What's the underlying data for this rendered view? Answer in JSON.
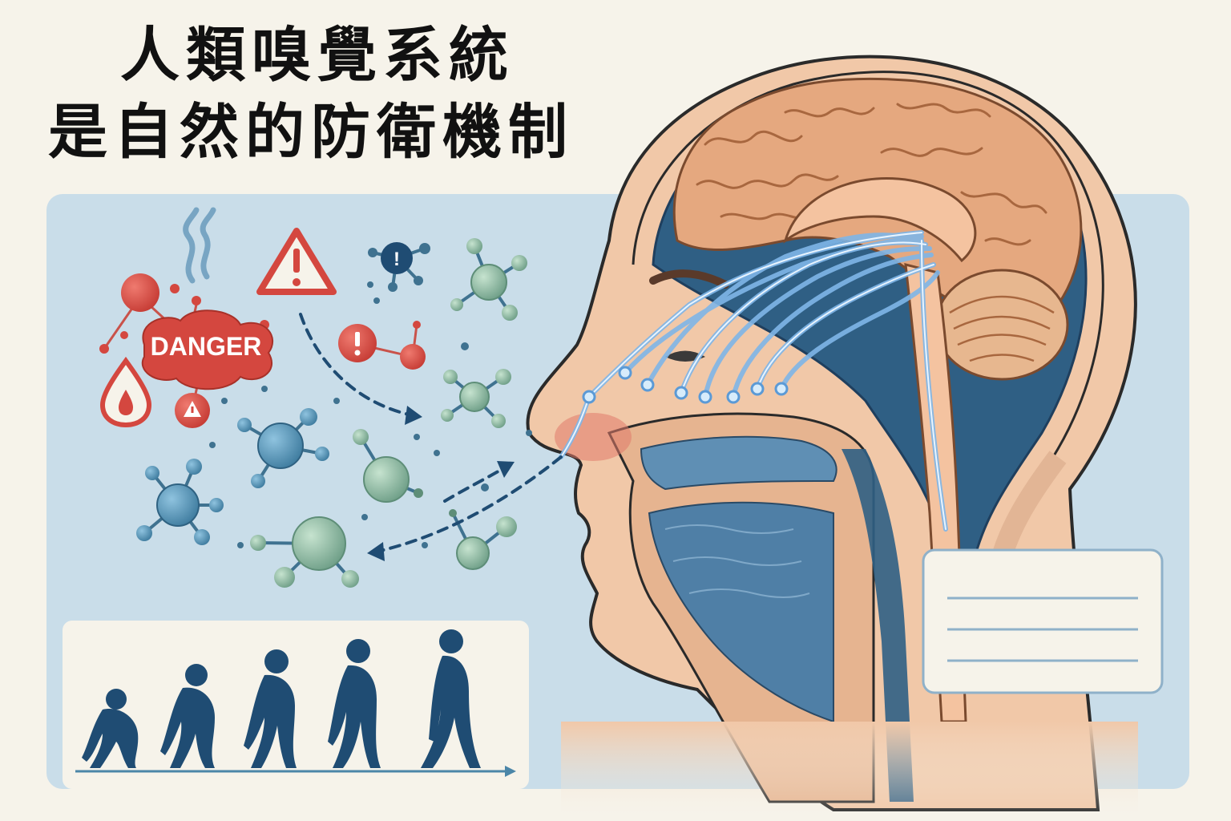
{
  "title": {
    "line1": "人類嗅覺系統",
    "line2": "是自然的防衛機制"
  },
  "danger_label": "DANGER",
  "colors": {
    "background": "#f6f3ea",
    "panel": "#c9dde9",
    "skin": "#f1c8a8",
    "brain": "#e5a87f",
    "nerve": "#7fb6e8",
    "danger": "#d4473f",
    "molecule_blue": "#4b86a8",
    "molecule_green": "#7fae96",
    "silhouette": "#1f4c73"
  },
  "icons": [
    "smoke-icon",
    "warning-triangle-icon",
    "fire-drop-icon",
    "exclamation-icon"
  ]
}
